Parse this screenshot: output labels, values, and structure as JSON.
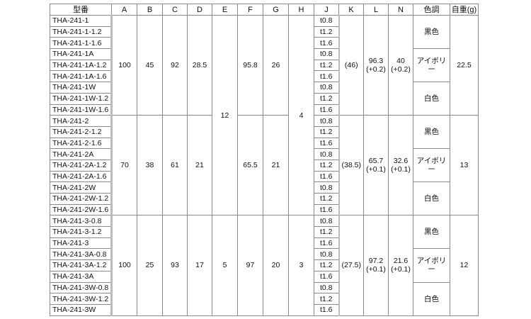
{
  "headers": [
    "型番",
    "A",
    "B",
    "C",
    "D",
    "E",
    "F",
    "G",
    "H",
    "J",
    "K",
    "L",
    "N",
    "色調",
    "自重(g)"
  ],
  "thicknesses": [
    "t0.8",
    "t1.2",
    "t1.6"
  ],
  "E_merged": "12",
  "H_merged": "4",
  "groups": [
    {
      "models": [
        "THA-241-1",
        "THA-241-1-1.2",
        "THA-241-1-1.6",
        "THA-241-1A",
        "THA-241-1A-1.2",
        "THA-241-1A-1.6",
        "THA-241-1W",
        "THA-241-1W-1.2",
        "THA-241-1W-1.6"
      ],
      "A": "100",
      "B": "45",
      "C": "92",
      "D": "28.5",
      "F": "95.8",
      "G": "26",
      "K": "(46)",
      "L": [
        "96.3",
        "(+0.2)"
      ],
      "N": [
        "40",
        "(+0.2)"
      ],
      "colors": [
        "黒色",
        "アイボリー",
        "白色"
      ],
      "weight": "22.5"
    },
    {
      "models": [
        "THA-241-2",
        "THA-241-2-1.2",
        "THA-241-2-1.6",
        "THA-241-2A",
        "THA-241-2A-1.2",
        "THA-241-2A-1.6",
        "THA-241-2W",
        "THA-241-2W-1.2",
        "THA-241-2W-1.6"
      ],
      "A": "70",
      "B": "38",
      "C": "61",
      "D": "21",
      "F": "65.5",
      "G": "21",
      "K": "(38.5)",
      "L": [
        "65.7",
        "(+0.1)"
      ],
      "N": [
        "32.6",
        "(+0.1)"
      ],
      "colors": [
        "黒色",
        "アイボリー",
        "白色"
      ],
      "weight": "13"
    },
    {
      "models": [
        "THA-241-3-0.8",
        "THA-241-3-1.2",
        "THA-241-3",
        "THA-241-3A-0.8",
        "THA-241-3A-1.2",
        "THA-241-3A",
        "THA-241-3W-0.8",
        "THA-241-3W-1.2",
        "THA-241-3W"
      ],
      "A": "100",
      "B": "25",
      "C": "93",
      "D": "17",
      "E": "5",
      "F": "97",
      "G": "20",
      "H": "3",
      "K": "(27.5)",
      "L": [
        "97.2",
        "(+0.1)"
      ],
      "N": [
        "21.6",
        "(+0.1)"
      ],
      "colors": [
        "黒色",
        "アイボリー",
        "白色"
      ],
      "weight": "12"
    }
  ]
}
